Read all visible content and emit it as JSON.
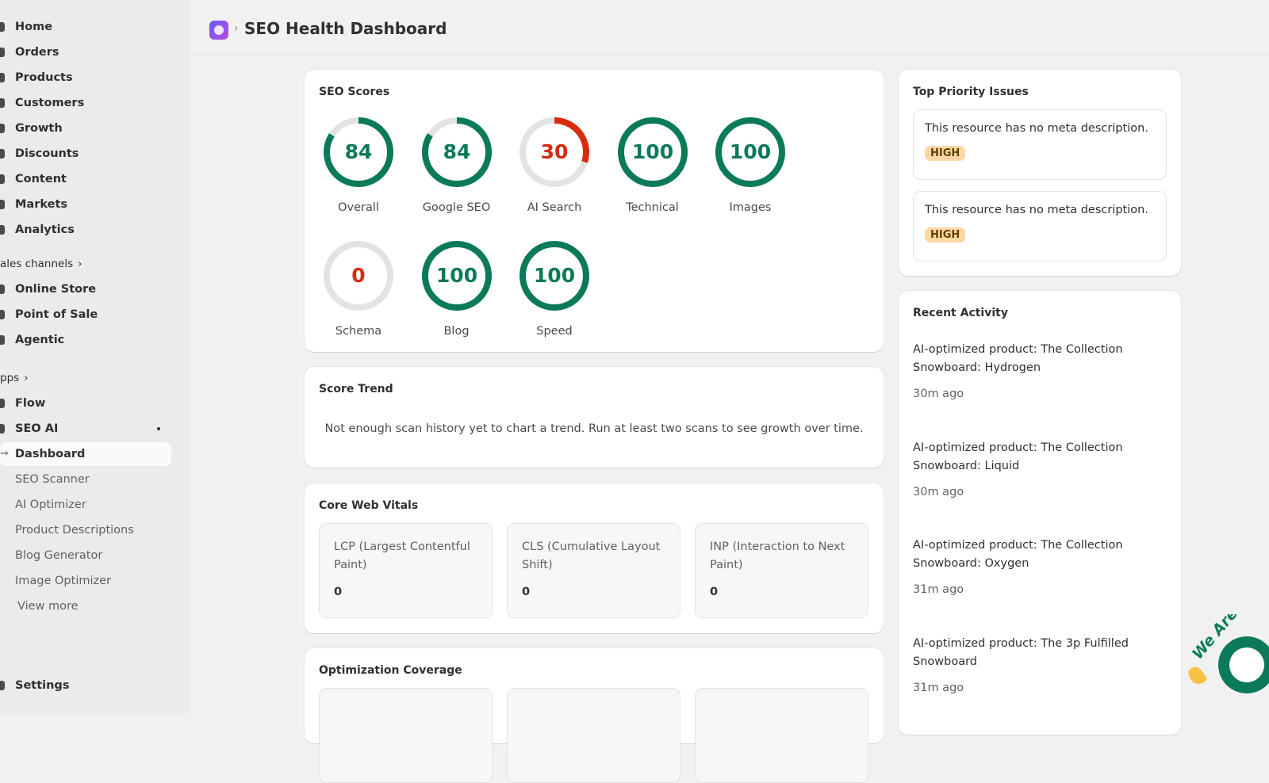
{
  "sidebar": {
    "main": [
      "Home",
      "Orders",
      "Products",
      "Customers",
      "Growth",
      "Discounts",
      "Content",
      "Markets",
      "Analytics"
    ],
    "sales_channels": {
      "label": "ales channels",
      "items": [
        "Online Store",
        "Point of Sale",
        "Agentic"
      ]
    },
    "apps": {
      "label": "pps",
      "items": [
        "Flow",
        "SEO AI"
      ]
    },
    "seo_ai_items": [
      "Dashboard",
      "SEO Scanner",
      "AI Optimizer",
      "Product Descriptions",
      "Blog Generator",
      "Image Optimizer"
    ],
    "view_more": "View more",
    "settings": "Settings"
  },
  "header": {
    "title": "SEO Health Dashboard"
  },
  "seo_scores": {
    "title": "SEO Scores",
    "range": [
      0,
      100
    ],
    "items": [
      {
        "label": "Overall",
        "value": 84,
        "color": "#0b7a5a"
      },
      {
        "label": "Google SEO",
        "value": 84,
        "color": "#0b7a5a"
      },
      {
        "label": "AI Search",
        "value": 30,
        "color": "#d72c0d"
      },
      {
        "label": "Technical",
        "value": 100,
        "color": "#0b7a5a"
      },
      {
        "label": "Images",
        "value": 100,
        "color": "#0b7a5a"
      },
      {
        "label": "Schema",
        "value": 0,
        "color": "#d72c0d"
      },
      {
        "label": "Blog",
        "value": 100,
        "color": "#0b7a5a"
      },
      {
        "label": "Speed",
        "value": 100,
        "color": "#0b7a5a"
      }
    ]
  },
  "score_trend": {
    "title": "Score Trend",
    "message": "Not enough scan history yet to chart a trend. Run at least two scans to see growth over time."
  },
  "core_web_vitals": {
    "title": "Core Web Vitals",
    "items": [
      {
        "label": "LCP (Largest Contentful Paint)",
        "value": "0"
      },
      {
        "label": "CLS (Cumulative Layout Shift)",
        "value": "0"
      },
      {
        "label": "INP (Interaction to Next Paint)",
        "value": "0"
      }
    ]
  },
  "optimization_coverage": {
    "title": "Optimization Coverage"
  },
  "top_priority_issues": {
    "title": "Top Priority Issues",
    "items": [
      {
        "text": "This resource has no meta description.",
        "severity": "HIGH"
      },
      {
        "text": "This resource has no meta description.",
        "severity": "HIGH"
      }
    ]
  },
  "recent_activity": {
    "title": "Recent Activity",
    "items": [
      {
        "text": "AI-optimized product: The Collection Snowboard: Hydrogen",
        "time": "30m ago"
      },
      {
        "text": "AI-optimized product: The Collection Snowboard: Liquid",
        "time": "30m ago"
      },
      {
        "text": "AI-optimized product: The Collection Snowboard: Oxygen",
        "time": "31m ago"
      },
      {
        "text": "AI-optimized product: The 3p Fulfilled Snowboard",
        "time": "31m ago"
      }
    ]
  },
  "chat_widget": {
    "label": "We Are"
  }
}
